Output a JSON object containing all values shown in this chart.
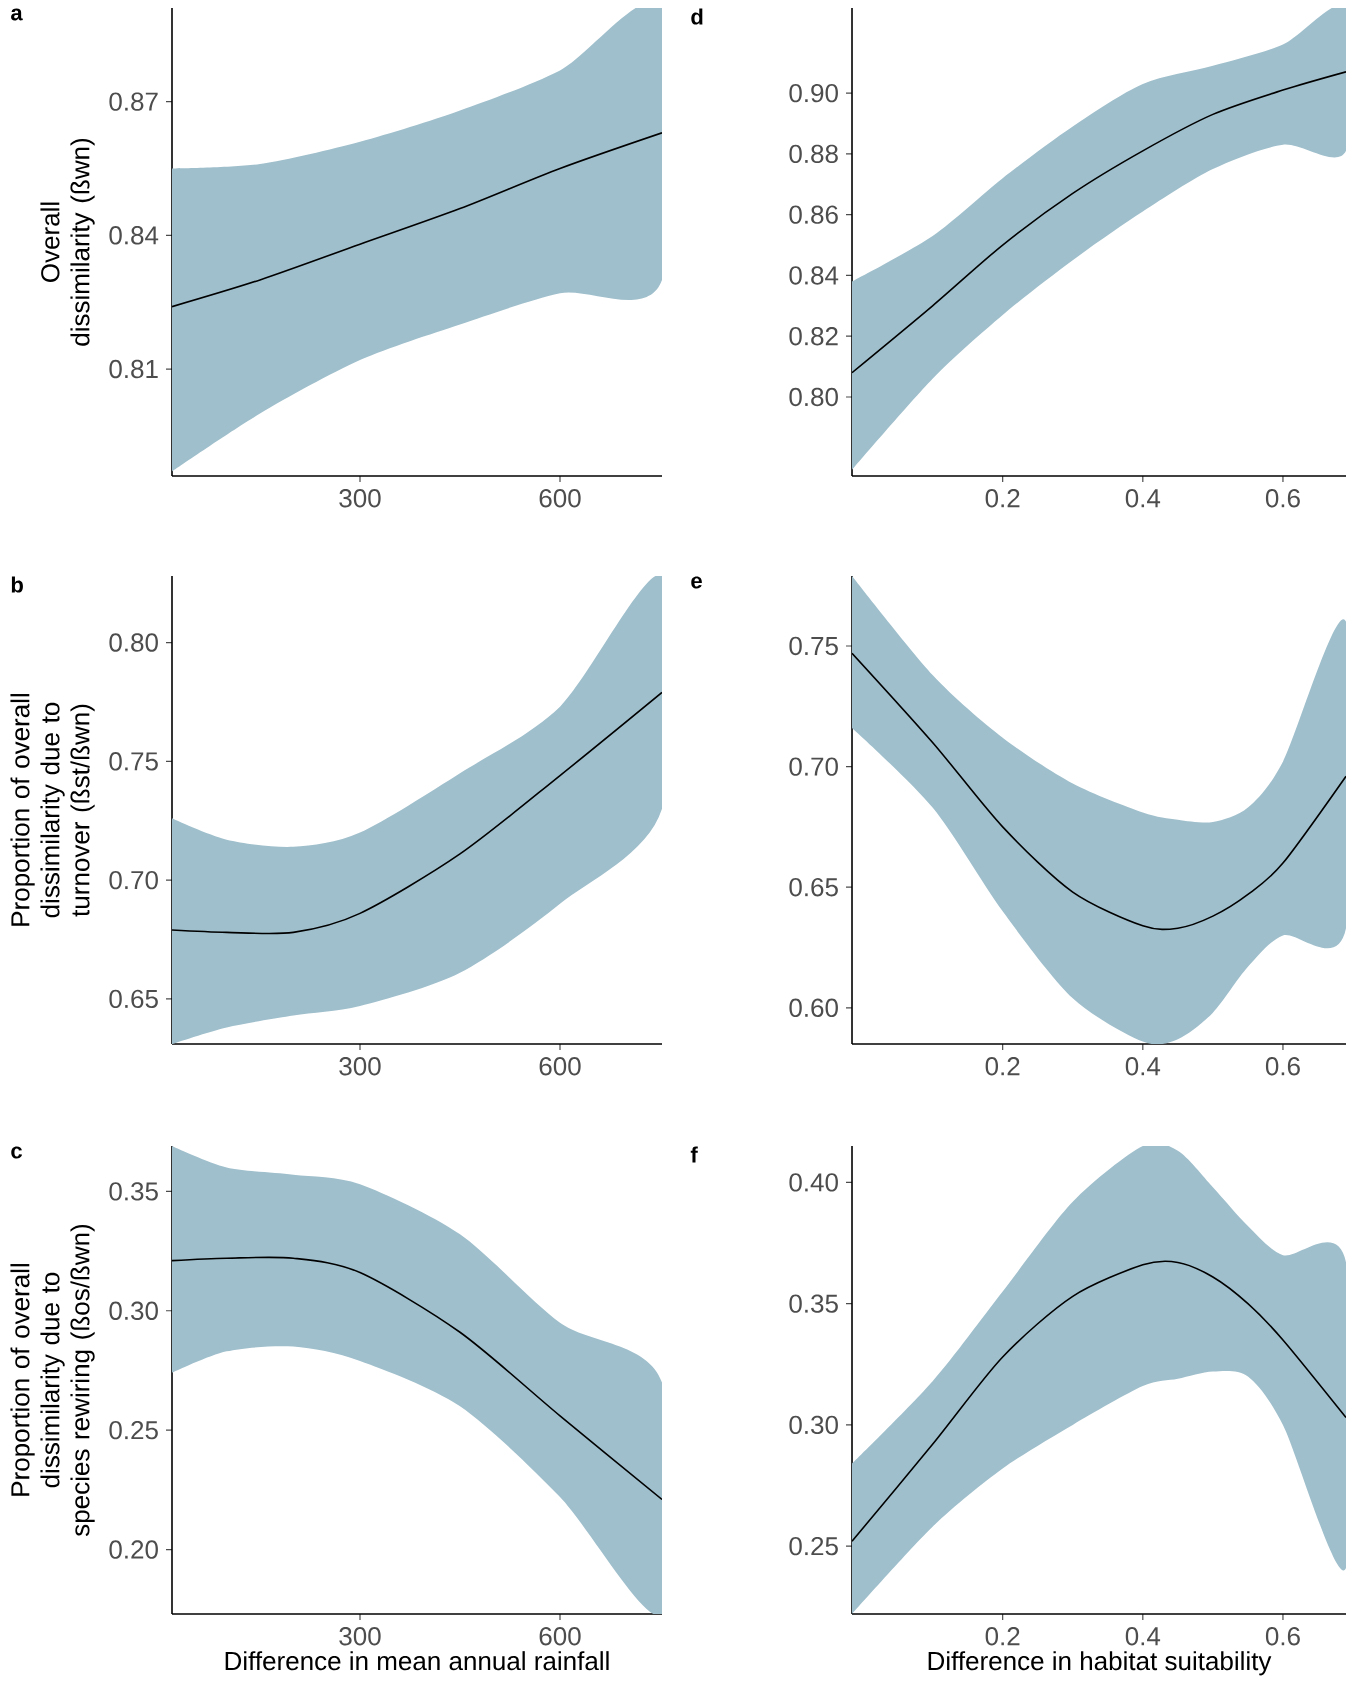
{
  "chart_data": [
    {
      "type": "line",
      "title": "a",
      "ylabel": "Overall dissimilarity (ßwn)",
      "xlim": [
        18,
        753
      ],
      "xticks": [
        300,
        600
      ],
      "ylim": [
        0.786,
        0.891
      ],
      "yticks": [
        0.81,
        0.84,
        0.87
      ],
      "x": [
        18,
        150,
        300,
        450,
        600,
        753
      ],
      "series": [
        {
          "color": "#000000",
          "values": [
            0.824,
            0.83,
            0.838,
            0.846,
            0.855,
            0.863
          ],
          "upper": [
            0.855,
            0.856,
            0.861,
            0.868,
            0.877,
            0.891
          ],
          "lower": [
            0.787,
            0.8,
            0.812,
            0.82,
            0.827,
            0.83
          ]
        }
      ]
    },
    {
      "type": "line",
      "title": "b",
      "ylabel": "Proportion of overall dissimilarity due to turnover (ßst/ßwn)",
      "xlim": [
        18,
        753
      ],
      "xticks": [
        300,
        600
      ],
      "ylim": [
        0.631,
        0.828
      ],
      "yticks": [
        0.65,
        {
          "value": 0.7,
          "label": "0.70"
        },
        0.75,
        {
          "value": 0.8,
          "label": "0.80"
        }
      ],
      "x": [
        18,
        100,
        200,
        300,
        450,
        600,
        753
      ],
      "series": [
        {
          "color": "#000000",
          "values": [
            0.679,
            0.678,
            0.678,
            0.686,
            0.711,
            0.744,
            0.779
          ],
          "upper": [
            0.726,
            0.717,
            0.714,
            0.72,
            0.745,
            0.773,
            0.828
          ],
          "lower": [
            0.631,
            0.638,
            0.643,
            0.647,
            0.661,
            0.69,
            0.73
          ]
        }
      ]
    },
    {
      "type": "line",
      "title": "c",
      "ylabel": "Proportion of overall dissimilarity due to species rewiring (ßos/ßwn)",
      "xlabel": "Difference in mean annual rainfall",
      "xlim": [
        18,
        753
      ],
      "xticks": [
        300,
        600
      ],
      "ylim": [
        0.173,
        0.369
      ],
      "yticks": [
        {
          "value": 0.2,
          "label": "0.20"
        },
        0.25,
        {
          "value": 0.3,
          "label": "0.30"
        },
        0.35
      ],
      "x": [
        18,
        100,
        200,
        300,
        450,
        600,
        753
      ],
      "series": [
        {
          "color": "#000000",
          "values": [
            0.321,
            0.322,
            0.322,
            0.316,
            0.291,
            0.256,
            0.221
          ],
          "upper": [
            0.369,
            0.36,
            0.357,
            0.353,
            0.332,
            0.295,
            0.27
          ],
          "lower": [
            0.274,
            0.283,
            0.285,
            0.279,
            0.26,
            0.222,
            0.173
          ]
        }
      ]
    },
    {
      "type": "line",
      "title": "d",
      "xlim": [
        -0.015,
        0.69
      ],
      "xticks": [
        0.2,
        0.4,
        0.6
      ],
      "ylim": [
        0.774,
        0.928
      ],
      "yticks": [
        {
          "value": 0.8,
          "label": "0.80"
        },
        0.82,
        0.84,
        0.86,
        0.88,
        {
          "value": 0.9,
          "label": "0.90"
        }
      ],
      "x": [
        -0.015,
        0.1,
        0.2,
        0.3,
        0.4,
        0.5,
        0.6,
        0.69
      ],
      "series": [
        {
          "color": "#000000",
          "values": [
            0.808,
            0.83,
            0.85,
            0.867,
            0.881,
            0.893,
            0.901,
            0.907
          ],
          "upper": [
            0.838,
            0.853,
            0.872,
            0.889,
            0.903,
            0.909,
            0.916,
            0.928
          ],
          "lower": [
            0.776,
            0.806,
            0.827,
            0.845,
            0.861,
            0.875,
            0.883,
            0.881
          ]
        }
      ]
    },
    {
      "type": "line",
      "title": "e",
      "xlim": [
        -0.015,
        0.69
      ],
      "xticks": [
        0.2,
        0.4,
        0.6
      ],
      "ylim": [
        0.585,
        0.779
      ],
      "yticks": [
        {
          "value": 0.6,
          "label": "0.60"
        },
        0.65,
        {
          "value": 0.7,
          "label": "0.70"
        },
        0.75
      ],
      "x": [
        -0.015,
        0.1,
        0.2,
        0.3,
        0.4,
        0.45,
        0.5,
        0.55,
        0.6,
        0.69
      ],
      "series": [
        {
          "color": "#000000",
          "values": [
            0.747,
            0.71,
            0.675,
            0.648,
            0.634,
            0.633,
            0.638,
            0.647,
            0.66,
            0.696
          ],
          "upper": [
            0.779,
            0.738,
            0.712,
            0.693,
            0.681,
            0.678,
            0.677,
            0.683,
            0.702,
            0.76
          ],
          "lower": [
            0.716,
            0.683,
            0.64,
            0.604,
            0.586,
            0.587,
            0.598,
            0.617,
            0.63,
            0.633
          ]
        }
      ]
    },
    {
      "type": "line",
      "title": "f",
      "xlabel": "Difference in habitat suitability",
      "xlim": [
        -0.015,
        0.69
      ],
      "xticks": [
        0.2,
        0.4,
        0.6
      ],
      "ylim": [
        0.222,
        0.415
      ],
      "yticks": [
        0.25,
        {
          "value": 0.3,
          "label": "0.30"
        },
        0.35,
        {
          "value": 0.4,
          "label": "0.40"
        }
      ],
      "x": [
        -0.015,
        0.1,
        0.2,
        0.3,
        0.4,
        0.45,
        0.5,
        0.55,
        0.6,
        0.69
      ],
      "series": [
        {
          "color": "#000000",
          "values": [
            0.252,
            0.292,
            0.328,
            0.353,
            0.366,
            0.367,
            0.361,
            0.35,
            0.335,
            0.303
          ],
          "upper": [
            0.284,
            0.318,
            0.355,
            0.392,
            0.415,
            0.413,
            0.398,
            0.382,
            0.37,
            0.367
          ],
          "lower": [
            0.222,
            0.258,
            0.282,
            0.3,
            0.316,
            0.319,
            0.322,
            0.32,
            0.3,
            0.241
          ]
        }
      ]
    }
  ]
}
